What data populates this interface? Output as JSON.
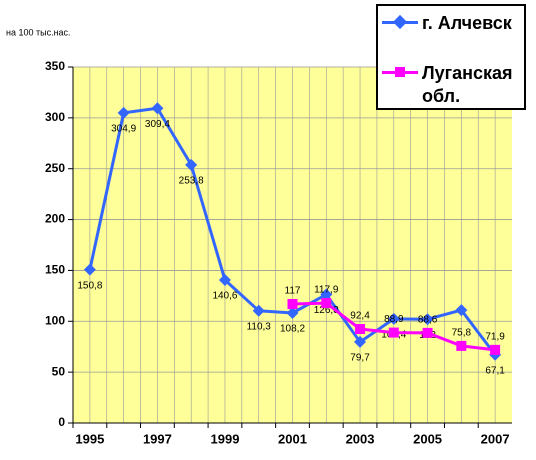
{
  "chart_data": {
    "type": "line",
    "unit_label": "на 100 тыс.нас.",
    "categories": [
      "1995",
      null,
      "1997",
      null,
      "1999",
      null,
      "2001",
      null,
      "2003",
      null,
      "2005",
      null,
      "2007"
    ],
    "ylim": [
      0,
      350
    ],
    "yticks": [
      0,
      50,
      100,
      150,
      200,
      250,
      300,
      350
    ],
    "grid": true,
    "legend": "top-right",
    "series": [
      {
        "name": "г. Алчевск",
        "color": "#3366ff",
        "marker": "diamond",
        "values": [
          150.8,
          304.9,
          309.4,
          253.8,
          140.6,
          110.3,
          108.2,
          126.3,
          79.7,
          102.4,
          102,
          111,
          67.1
        ],
        "value_labels": [
          "150,8",
          "304,9",
          "309,4",
          "253,8",
          "140,6",
          "110,3",
          "108,2",
          "126,3",
          "79,7",
          "102,4",
          "102",
          null,
          "67,1"
        ]
      },
      {
        "name": "Луганская обл.",
        "color": "#ff00ff",
        "marker": "square",
        "values": [
          null,
          null,
          null,
          null,
          null,
          null,
          117,
          117.9,
          92.4,
          88.9,
          88.6,
          75.8,
          71.9
        ],
        "value_labels": [
          null,
          null,
          null,
          null,
          null,
          null,
          "117",
          "117,9",
          "92,4",
          "88,9",
          "88,6",
          "75,8",
          "71,9"
        ]
      }
    ]
  }
}
